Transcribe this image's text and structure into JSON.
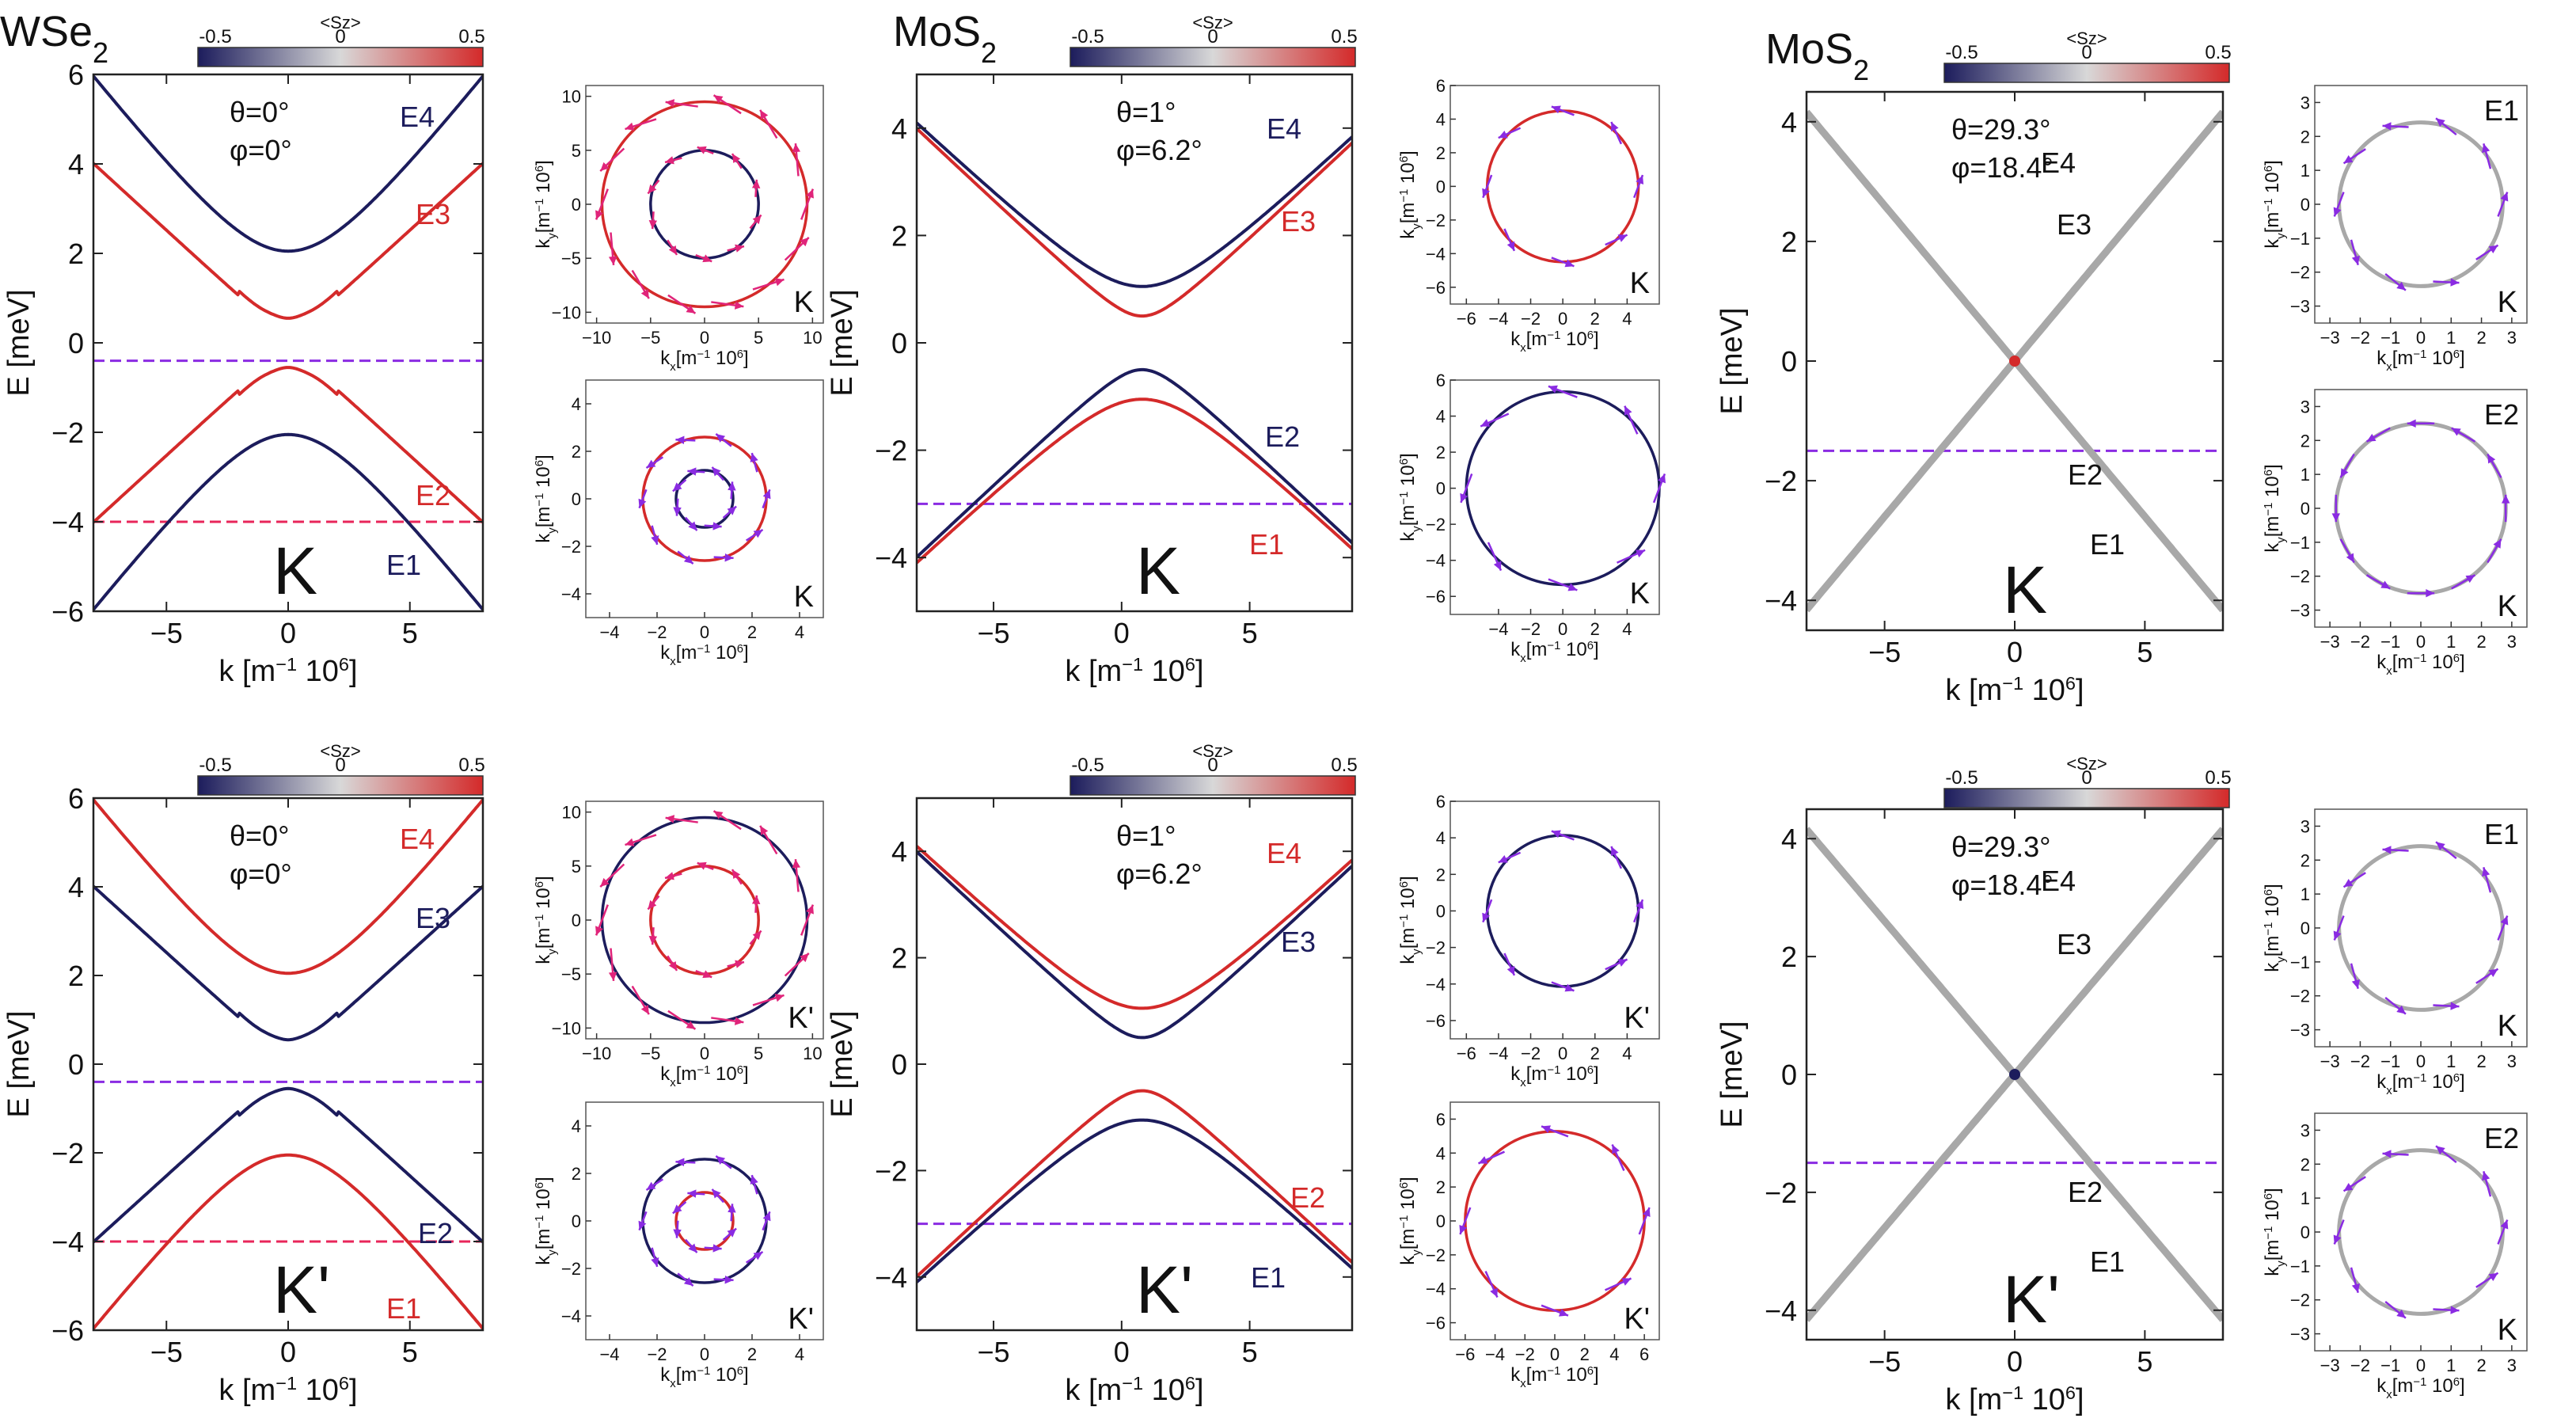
{
  "colors": {
    "neg": "#1c1c5c",
    "pos": "#d42a2a",
    "gray": "#a8a8a8",
    "purple": "#8a2be2",
    "pink": "#e0246a",
    "dash_purple": "#8a2be2",
    "dash_red": "#e8265a",
    "arrow_purple": "#8a2be2",
    "arrow_pink": "#e0247a"
  },
  "colorbar": {
    "title": "<Sz>",
    "ticks": [
      "-0.5",
      "0",
      "0.5"
    ]
  },
  "chart_data": [
    {
      "type": "line",
      "material": "WSe",
      "material_sub": "2",
      "valley": "K",
      "theta": "θ=0°",
      "phi": "φ=0°",
      "xlabel_main": "k [m",
      "xlabel_sup1": "−1",
      "xlabel_rest": " 10",
      "xlabel_sup2": "6",
      "xlabel_end": "]",
      "ylabel": "E [meV]",
      "xlim": [
        -8,
        8
      ],
      "ylim": [
        -6,
        6
      ],
      "xticks": [
        -5,
        0,
        5
      ],
      "yticks": [
        -6,
        -4,
        -2,
        0,
        2,
        4,
        6
      ],
      "series": [
        {
          "name": "E4",
          "color": "neg",
          "shape": "hyperbola",
          "c": 2.05,
          "a": 0.7,
          "sign": 1
        },
        {
          "name": "E3",
          "color": "pos",
          "shape": "mexican",
          "c": 0.55,
          "a": 0.7,
          "sign": 1
        },
        {
          "name": "E2",
          "color": "pos",
          "shape": "mexican",
          "c": -0.55,
          "a": 0.7,
          "sign": -1
        },
        {
          "name": "E1",
          "color": "neg",
          "shape": "hyperbola",
          "c": -2.05,
          "a": 0.7,
          "sign": -1
        }
      ],
      "hlines": [
        {
          "y": -0.4,
          "color": "dash_purple"
        },
        {
          "y": -4.0,
          "color": "dash_red"
        }
      ]
    },
    {
      "type": "line",
      "material": "MoS",
      "material_sub": "2",
      "valley": "K",
      "theta": "θ=1°",
      "phi": "φ=6.2°",
      "xlabel_main": "k [m",
      "xlabel_sup1": "−1",
      "xlabel_rest": " 10",
      "xlabel_sup2": "6",
      "xlabel_end": "]",
      "ylabel": "E [meV]",
      "xlim": [
        -8,
        9
      ],
      "ylim": [
        -5,
        5
      ],
      "xticks": [
        -5,
        0,
        5
      ],
      "yticks": [
        -4,
        -2,
        0,
        2,
        4
      ],
      "series": [
        {
          "name": "E4",
          "color": "neg",
          "shape": "hyperbola",
          "c": 1.05,
          "a": 0.45,
          "sign": 1,
          "x0": 0.8
        },
        {
          "name": "E3",
          "color": "pos",
          "shape": "hyperbola",
          "c": 0.5,
          "a": 0.45,
          "sign": 1,
          "x0": 0.8
        },
        {
          "name": "E2",
          "color": "neg",
          "shape": "hyperbola",
          "c": -0.5,
          "a": 0.45,
          "sign": -1,
          "x0": 0.8
        },
        {
          "name": "E1",
          "color": "pos",
          "shape": "hyperbola",
          "c": -1.05,
          "a": 0.45,
          "sign": -1,
          "x0": 0.8
        }
      ],
      "hlines": [
        {
          "y": -3.0,
          "color": "dash_purple"
        }
      ]
    },
    {
      "type": "line",
      "material": "MoS",
      "material_sub": "2",
      "valley": "K",
      "theta": "θ=29.3°",
      "phi": "φ=18.4°",
      "xlabel_main": "k [m",
      "xlabel_sup1": "−1",
      "xlabel_rest": " 10",
      "xlabel_sup2": "6",
      "xlabel_end": "]",
      "ylabel": "E [meV]",
      "xlim": [
        -8,
        8
      ],
      "ylim": [
        -4.5,
        4.5
      ],
      "xticks": [
        -5,
        0,
        5
      ],
      "yticks": [
        -4,
        -2,
        0,
        2,
        4
      ],
      "series": [
        {
          "name": "E4",
          "color": "gray",
          "shape": "linear",
          "c": 0,
          "a": 0.52,
          "sign": 1
        },
        {
          "name": "E3",
          "color": "gray",
          "shape": "linear",
          "c": 0,
          "a": 0.52,
          "sign": 1
        },
        {
          "name": "E2",
          "color": "gray",
          "shape": "linear",
          "c": 0,
          "a": 0.52,
          "sign": -1
        },
        {
          "name": "E1",
          "color": "gray",
          "shape": "linear",
          "c": 0,
          "a": 0.52,
          "sign": -1
        }
      ],
      "hlines": [
        {
          "y": -1.5,
          "color": "dash_purple"
        }
      ],
      "crossing_dot": "pos"
    },
    {
      "type": "line",
      "material": "",
      "material_sub": "",
      "valley": "K'",
      "theta": "θ=0°",
      "phi": "φ=0°",
      "xlabel_main": "k [m",
      "xlabel_sup1": "−1",
      "xlabel_rest": " 10",
      "xlabel_sup2": "6",
      "xlabel_end": "]",
      "ylabel": "E [meV]",
      "xlim": [
        -8,
        8
      ],
      "ylim": [
        -6,
        6
      ],
      "xticks": [
        -5,
        0,
        5
      ],
      "yticks": [
        -6,
        -4,
        -2,
        0,
        2,
        4,
        6
      ],
      "series": [
        {
          "name": "E4",
          "color": "pos",
          "shape": "hyperbola",
          "c": 2.05,
          "a": 0.7,
          "sign": 1
        },
        {
          "name": "E3",
          "color": "neg",
          "shape": "mexican",
          "c": 0.55,
          "a": 0.7,
          "sign": 1
        },
        {
          "name": "E2",
          "color": "neg",
          "shape": "mexican",
          "c": -0.55,
          "a": 0.7,
          "sign": -1
        },
        {
          "name": "E1",
          "color": "pos",
          "shape": "hyperbola",
          "c": -2.05,
          "a": 0.7,
          "sign": -1
        }
      ],
      "hlines": [
        {
          "y": -0.4,
          "color": "dash_purple"
        },
        {
          "y": -4.0,
          "color": "dash_red"
        }
      ]
    },
    {
      "type": "line",
      "material": "",
      "material_sub": "",
      "valley": "K'",
      "theta": "θ=1°",
      "phi": "φ=6.2°",
      "xlabel_main": "k [m",
      "xlabel_sup1": "−1",
      "xlabel_rest": " 10",
      "xlabel_sup2": "6",
      "xlabel_end": "]",
      "ylabel": "E [meV]",
      "xlim": [
        -8,
        9
      ],
      "ylim": [
        -5,
        5
      ],
      "xticks": [
        -5,
        0,
        5
      ],
      "yticks": [
        -4,
        -2,
        0,
        2,
        4
      ],
      "series": [
        {
          "name": "E4",
          "color": "pos",
          "shape": "hyperbola",
          "c": 1.05,
          "a": 0.45,
          "sign": 1,
          "x0": 0.8
        },
        {
          "name": "E3",
          "color": "neg",
          "shape": "hyperbola",
          "c": 0.5,
          "a": 0.45,
          "sign": 1,
          "x0": 0.8
        },
        {
          "name": "E2",
          "color": "pos",
          "shape": "hyperbola",
          "c": -0.5,
          "a": 0.45,
          "sign": -1,
          "x0": 0.8
        },
        {
          "name": "E1",
          "color": "neg",
          "shape": "hyperbola",
          "c": -1.05,
          "a": 0.45,
          "sign": -1,
          "x0": 0.8
        }
      ],
      "hlines": [
        {
          "y": -3.0,
          "color": "dash_purple"
        }
      ]
    },
    {
      "type": "line",
      "material": "",
      "material_sub": "",
      "valley": "K'",
      "theta": "θ=29.3°",
      "phi": "φ=18.4°",
      "xlabel_main": "k [m",
      "xlabel_sup1": "−1",
      "xlabel_rest": " 10",
      "xlabel_sup2": "6",
      "xlabel_end": "]",
      "ylabel": "E [meV]",
      "xlim": [
        -8,
        8
      ],
      "ylim": [
        -4.5,
        4.5
      ],
      "xticks": [
        -5,
        0,
        5
      ],
      "yticks": [
        -4,
        -2,
        0,
        2,
        4
      ],
      "series": [
        {
          "name": "E4",
          "color": "gray",
          "shape": "linear",
          "c": 0,
          "a": 0.52,
          "sign": 1
        },
        {
          "name": "E3",
          "color": "gray",
          "shape": "linear",
          "c": 0,
          "a": 0.52,
          "sign": 1
        },
        {
          "name": "E2",
          "color": "gray",
          "shape": "linear",
          "c": 0,
          "a": 0.52,
          "sign": -1
        },
        {
          "name": "E1",
          "color": "gray",
          "shape": "linear",
          "c": 0,
          "a": 0.52,
          "sign": -1
        }
      ],
      "hlines": [
        {
          "y": -1.5,
          "color": "dash_purple"
        }
      ],
      "crossing_dot": "neg"
    }
  ],
  "contours": [
    {
      "valley": "K",
      "lim": [
        -11,
        11
      ],
      "ticks": [
        -10,
        -5,
        0,
        5,
        10
      ],
      "ring_a": {
        "r": 9.5,
        "color": "pos",
        "arrows": "pink",
        "n": 14
      },
      "ring_b": {
        "r": 5,
        "color": "neg",
        "arrows": "pink",
        "n": 10,
        "x0": 0
      }
    },
    {
      "valley": "K",
      "lim": [
        -5,
        5
      ],
      "ticks": [
        -4,
        -2,
        0,
        2,
        4
      ],
      "ring_a": {
        "r": 2.6,
        "color": "pos",
        "arrows": "purple",
        "n": 10
      },
      "ring_b": {
        "r": 1.2,
        "color": "neg",
        "arrows": "purple",
        "n": 8
      }
    },
    {
      "valley": "K",
      "lim": [
        -7,
        6
      ],
      "ticks": [
        -6,
        -4,
        -2,
        0,
        2,
        4
      ],
      "yticks": [
        -6,
        -4,
        -2,
        0,
        2,
        4,
        6
      ],
      "ring_a": {
        "r": 4.7,
        "color": "pos",
        "arrows": "purple",
        "n": 8,
        "x0": 0
      }
    },
    {
      "valley": "K",
      "lim": [
        -7,
        6
      ],
      "ticks": [
        -4,
        -2,
        0,
        2,
        4
      ],
      "yticks": [
        -6,
        -4,
        -2,
        0,
        2,
        4,
        6
      ],
      "ring_a": {
        "r": 6,
        "color": "neg",
        "arrows": "purple",
        "n": 8,
        "x0": 0
      }
    },
    {
      "valley": "K",
      "band": "E1",
      "lim": [
        -3.5,
        3.5
      ],
      "ticks": [
        -3,
        -2,
        -1,
        0,
        1,
        2,
        3
      ],
      "yticks": [
        -3,
        -2,
        -1,
        0,
        1,
        2,
        3
      ],
      "ring_a": {
        "r": 2.7,
        "color": "gray",
        "arrows": "purple",
        "n": 10
      }
    },
    {
      "valley": "K",
      "band": "E2",
      "lim": [
        -3.5,
        3.5
      ],
      "ticks": [
        -3,
        -2,
        -1,
        0,
        1,
        2,
        3
      ],
      "yticks": [
        -3,
        -2,
        -1,
        0,
        1,
        2,
        3
      ],
      "ring_a": {
        "r": 2.8,
        "color": "gray",
        "arrows": "purple",
        "n": 12,
        "tangent": true
      }
    },
    {
      "valley": "K'",
      "lim": [
        -11,
        11
      ],
      "ticks": [
        -10,
        -5,
        0,
        5,
        10
      ],
      "ring_a": {
        "r": 9.5,
        "color": "neg",
        "arrows": "pink",
        "n": 14
      },
      "ring_b": {
        "r": 5,
        "color": "pos",
        "arrows": "pink",
        "n": 10
      }
    },
    {
      "valley": "K'",
      "lim": [
        -5,
        5
      ],
      "ticks": [
        -4,
        -2,
        0,
        2,
        4
      ],
      "ring_a": {
        "r": 2.6,
        "color": "neg",
        "arrows": "purple",
        "n": 10
      },
      "ring_b": {
        "r": 1.2,
        "color": "pos",
        "arrows": "purple",
        "n": 8
      }
    },
    {
      "valley": "K'",
      "lim": [
        -7,
        6
      ],
      "ticks": [
        -6,
        -4,
        -2,
        0,
        2,
        4
      ],
      "yticks": [
        -6,
        -4,
        -2,
        0,
        2,
        4,
        6
      ],
      "ring_a": {
        "r": 4.7,
        "color": "neg",
        "arrows": "purple",
        "n": 8
      }
    },
    {
      "valley": "K'",
      "lim": [
        -7,
        7
      ],
      "ticks": [
        -6,
        -4,
        -2,
        0,
        2,
        4,
        6
      ],
      "yticks": [
        -6,
        -4,
        -2,
        0,
        2,
        4,
        6
      ],
      "ring_a": {
        "r": 6,
        "color": "pos",
        "arrows": "purple",
        "n": 8
      }
    },
    {
      "valley": "K",
      "band": "E1",
      "lim": [
        -3.5,
        3.5
      ],
      "ticks": [
        -3,
        -2,
        -1,
        0,
        1,
        2,
        3
      ],
      "yticks": [
        -3,
        -2,
        -1,
        0,
        1,
        2,
        3
      ],
      "ring_a": {
        "r": 2.7,
        "color": "gray",
        "arrows": "purple",
        "n": 10
      }
    },
    {
      "valley": "K",
      "band": "E2",
      "lim": [
        -3.5,
        3.5
      ],
      "ticks": [
        -3,
        -2,
        -1,
        0,
        1,
        2,
        3
      ],
      "yticks": [
        -3,
        -2,
        -1,
        0,
        1,
        2,
        3
      ],
      "ring_a": {
        "r": 2.7,
        "color": "gray",
        "arrows": "purple",
        "n": 10
      }
    }
  ],
  "contour_labels": {
    "ylabel_main": "k",
    "ylabel_sub": "y",
    "ylabel_rest": "[m",
    "ylabel_sup1": "−1",
    "ylabel_end": " 10",
    "ylabel_sup2": "6",
    "ylabel_close": "]",
    "xlabel_main": "k",
    "xlabel_sub": "x",
    "xlabel_rest": "[m",
    "xlabel_sup1": "−1",
    "xlabel_end": " 10",
    "xlabel_sup2": "6",
    "xlabel_close": "]"
  }
}
